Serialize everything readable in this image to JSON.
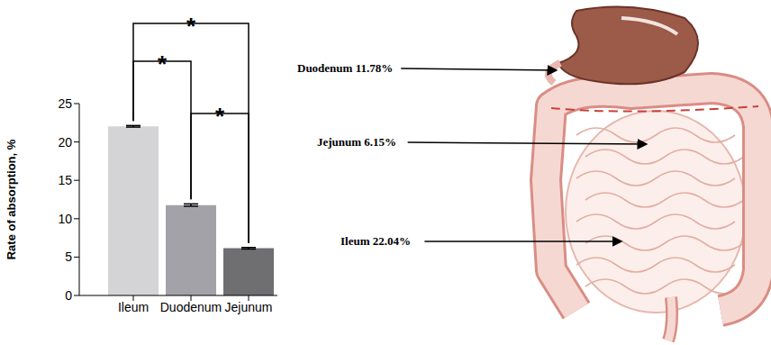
{
  "chart_data": {
    "type": "bar",
    "categories": [
      "Ileum",
      "Duodenum",
      "Jejunum"
    ],
    "values": [
      22.04,
      11.78,
      6.15
    ],
    "errors": [
      0.1,
      0.15,
      0.1
    ],
    "colors": [
      "#d4d4d6",
      "#a4a2a9",
      "#6f6f72"
    ],
    "y_label": "Rate of absorption, %",
    "ylim": [
      0,
      25
    ],
    "yticks": [
      0,
      5,
      10,
      15,
      20,
      25
    ],
    "grid": false,
    "annotations": [
      {
        "pair": [
          "Ileum",
          "Jejunum"
        ],
        "text": "*"
      },
      {
        "pair": [
          "Ileum",
          "Duodenum"
        ],
        "text": "*"
      },
      {
        "pair": [
          "Duodenum",
          "Jejunum"
        ],
        "text": "*"
      }
    ]
  },
  "illustration": {
    "labels": [
      "Duodenum 11.78%",
      "Jejunum 6.15%",
      "Ileum 22.04%"
    ]
  }
}
